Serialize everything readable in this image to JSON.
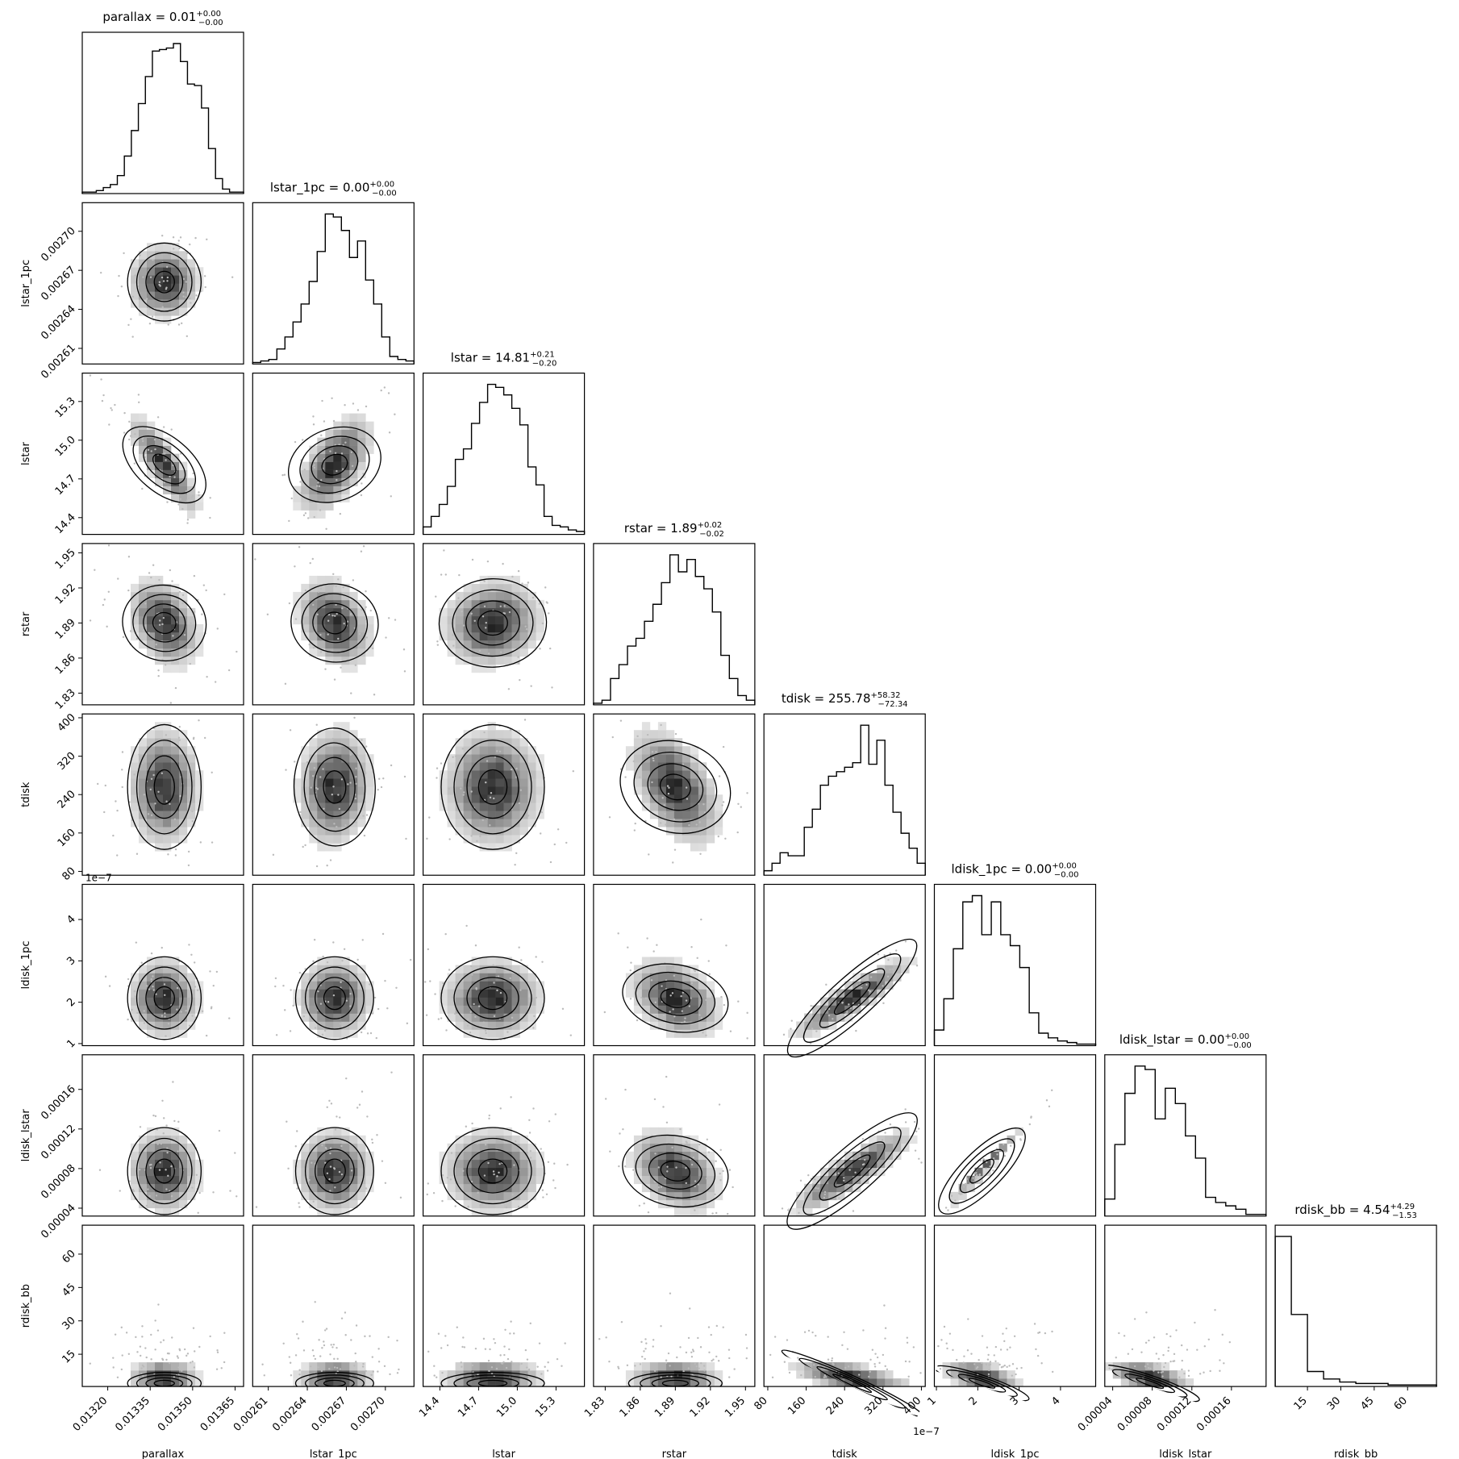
{
  "chart_data": {
    "type": "corner",
    "parameters": [
      {
        "name": "parallax",
        "label": "parallax",
        "title": "parallax = 0.01",
        "sup": "+0.00",
        "sub": "−0.00",
        "range": [
          0.01311,
          0.01368
        ],
        "center": 0.0134,
        "sigma": 6.5e-05,
        "ticks": [
          "0.01320",
          "0.01335",
          "0.01350",
          "0.01365"
        ],
        "tick_values": [
          0.0132,
          0.01335,
          0.0135,
          0.01365
        ],
        "hist": [
          1,
          1,
          2,
          4,
          6,
          12,
          25,
          42,
          60,
          78,
          95,
          96,
          97,
          100,
          88,
          73,
          72,
          57,
          30,
          10,
          3,
          1,
          1
        ]
      },
      {
        "name": "lstar_1pc",
        "label": "lstar_1pc",
        "title": "lstar_1pc = 0.00",
        "sup": "+0.00",
        "sub": "−0.00",
        "range": [
          0.002598,
          0.002722
        ],
        "center": 0.002661,
        "sigma": 1.5e-05,
        "ticks": [
          "0.00261",
          "0.00264",
          "0.00267",
          "0.00270"
        ],
        "tick_values": [
          0.00261,
          0.00264,
          0.00267,
          0.0027
        ],
        "hist": [
          1,
          2,
          3,
          10,
          18,
          28,
          40,
          55,
          75,
          100,
          98,
          89,
          71,
          82,
          56,
          40,
          18,
          5,
          3,
          2
        ]
      },
      {
        "name": "lstar",
        "label": "lstar",
        "title": "lstar = 14.81",
        "sup": "+0.21",
        "sub": "−0.20",
        "range": [
          14.27,
          15.52
        ],
        "center": 14.81,
        "sigma": 0.2,
        "ticks": [
          "14.4",
          "14.7",
          "15.0",
          "15.3"
        ],
        "tick_values": [
          14.4,
          14.7,
          15.0,
          15.3
        ],
        "hist": [
          5,
          12,
          20,
          32,
          50,
          57,
          74,
          88,
          100,
          98,
          93,
          84,
          73,
          45,
          33,
          12,
          6,
          5,
          3,
          2
        ]
      },
      {
        "name": "rstar",
        "label": "rstar",
        "title": "rstar = 1.89",
        "sup": "+0.02",
        "sub": "−0.02",
        "range": [
          1.82,
          1.958
        ],
        "center": 1.89,
        "sigma": 0.02,
        "ticks": [
          "1.83",
          "1.86",
          "1.89",
          "1.92",
          "1.95"
        ],
        "tick_values": [
          1.83,
          1.86,
          1.89,
          1.92,
          1.95
        ],
        "hist": [
          1,
          3,
          17,
          26,
          38,
          43,
          54,
          65,
          79,
          97,
          86,
          94,
          83,
          75,
          60,
          32,
          17,
          6,
          3
        ]
      },
      {
        "name": "tdisk",
        "label": "tdisk",
        "title": "tdisk = 255.78",
        "sup": "+58.32",
        "sub": "−72.34",
        "range": [
          72,
          408
        ],
        "center": 255.78,
        "sigma": 65,
        "ticks": [
          "80",
          "160",
          "240",
          "320",
          "400"
        ],
        "tick_values": [
          80,
          160,
          240,
          320,
          400
        ],
        "hist": [
          3,
          8,
          15,
          13,
          13,
          32,
          44,
          60,
          66,
          69,
          72,
          75,
          100,
          74,
          90,
          60,
          42,
          28,
          18,
          8
        ]
      },
      {
        "name": "ldisk_1pc",
        "label": "ldisk_1pc",
        "title": "ldisk_1pc = 0.00",
        "sup": "+0.00",
        "sub": "−0.00",
        "range": [
          9.5e-08,
          4.85e-07
        ],
        "center": 2.1e-07,
        "sigma": 5e-08,
        "ticks": [
          "1",
          "2",
          "3",
          "4"
        ],
        "tick_values": [
          1e-07,
          2e-07,
          3e-07,
          4e-07
        ],
        "offset": "1e−7",
        "hist": [
          10,
          30,
          62,
          92,
          96,
          71,
          92,
          71,
          64,
          50,
          21,
          8,
          5,
          3,
          2,
          1,
          1
        ]
      },
      {
        "name": "ldisk_lstar",
        "label": "ldisk_lstar",
        "title": "ldisk_lstar = 0.00",
        "sup": "+0.00",
        "sub": "−0.00",
        "range": [
          3.2e-05,
          0.000195
        ],
        "center": 7.75e-05,
        "sigma": 2.2e-05,
        "ticks": [
          "0.00004",
          "0.00008",
          "0.00012",
          "0.00016"
        ],
        "tick_values": [
          4e-05,
          8e-05,
          0.00012,
          0.00016
        ],
        "hist": [
          10,
          42,
          72,
          88,
          86,
          57,
          75,
          66,
          47,
          34,
          11,
          8,
          6,
          4,
          1,
          1
        ]
      },
      {
        "name": "rdisk_bb",
        "label": "rdisk_bb",
        "title": "rdisk_bb = 4.54",
        "sup": "+4.29",
        "sub": "−1.53",
        "range": [
          0.5,
          73
        ],
        "center": 4.54,
        "sigma": 3.5,
        "ticks": [
          "15",
          "30",
          "45",
          "60"
        ],
        "tick_values": [
          15,
          30,
          45,
          60
        ],
        "hist": [
          100,
          48,
          10,
          5,
          3,
          2,
          2,
          1,
          1,
          1
        ]
      }
    ],
    "y_ticks": {
      "lstar_1pc": [
        "0.00261",
        "0.00264",
        "0.00267",
        "0.00270"
      ],
      "lstar": [
        "14.4",
        "14.7",
        "15.0",
        "15.3"
      ],
      "rstar": [
        "1.83",
        "1.86",
        "1.89",
        "1.92",
        "1.95"
      ],
      "tdisk": [
        "80",
        "160",
        "240",
        "320",
        "400"
      ],
      "ldisk_1pc": [
        "1",
        "2",
        "3",
        "4"
      ],
      "ldisk_lstar": [
        "0.00004",
        "0.00008",
        "0.00012",
        "0.00016"
      ],
      "rdisk_bb": [
        "15",
        "30",
        "45",
        "60"
      ]
    },
    "correlations": {
      "2,0": -0.85,
      "2,1": 0.55,
      "3,0": -0.35,
      "3,1": -0.3,
      "3,2": 0.1,
      "4,0": 0.0,
      "4,1": 0.1,
      "4,2": 0.0,
      "4,3": -0.5,
      "5,0": 0.0,
      "5,1": 0.0,
      "5,2": 0.0,
      "5,3": -0.35,
      "5,4": 0.9,
      "6,0": 0.0,
      "6,1": 0.0,
      "6,2": 0.0,
      "6,3": -0.35,
      "6,4": 0.88,
      "6,5": 0.99,
      "7,0": 0.0,
      "7,1": 0.0,
      "7,2": 0.0,
      "7,3": 0.0,
      "7,4": -0.6,
      "7,5": -0.5,
      "7,6": -0.5
    },
    "grid": false,
    "legend": "none"
  }
}
